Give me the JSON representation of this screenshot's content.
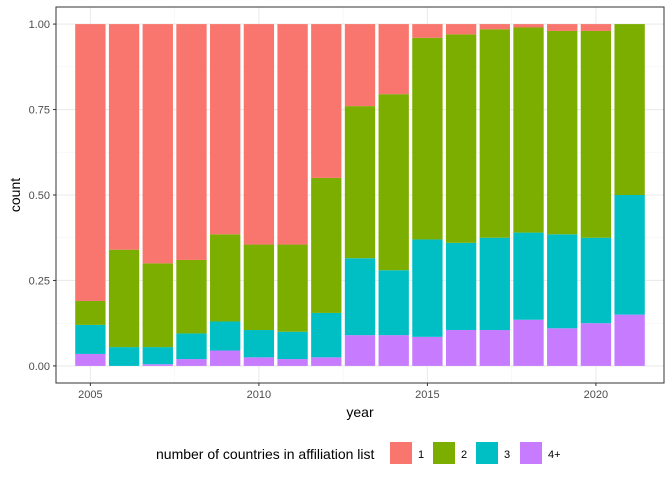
{
  "chart_data": {
    "type": "bar",
    "stacked": true,
    "xlabel": "year",
    "ylabel": "count",
    "x": [
      2005,
      2006,
      2007,
      2008,
      2009,
      2010,
      2011,
      2012,
      2013,
      2014,
      2015,
      2016,
      2017,
      2018,
      2019,
      2020,
      2021
    ],
    "xlim": [
      2003.98,
      2022.02
    ],
    "xticks": [
      2005,
      2010,
      2015,
      2020
    ],
    "ylim": [
      -0.05,
      1.05
    ],
    "yticks": [
      0,
      0.25,
      0.5,
      0.75,
      1
    ],
    "ytick_labels": [
      "0.00",
      "0.25",
      "0.50",
      "0.75",
      "1.00"
    ],
    "grid": true,
    "legend": {
      "title": "number of countries in affiliation list",
      "position": "bottom"
    },
    "series": [
      {
        "name": "1",
        "color": "#F8766D",
        "values": [
          0.81,
          0.66,
          0.7,
          0.69,
          0.615,
          0.645,
          0.645,
          0.45,
          0.24,
          0.205,
          0.04,
          0.03,
          0.015,
          0.01,
          0.02,
          0.02,
          0.0
        ]
      },
      {
        "name": "2",
        "color": "#7CAE00",
        "values": [
          0.07,
          0.285,
          0.245,
          0.215,
          0.255,
          0.25,
          0.255,
          0.395,
          0.445,
          0.515,
          0.59,
          0.61,
          0.61,
          0.6,
          0.595,
          0.605,
          0.5
        ]
      },
      {
        "name": "3",
        "color": "#00BFC4",
        "values": [
          0.085,
          0.055,
          0.05,
          0.075,
          0.085,
          0.08,
          0.08,
          0.13,
          0.225,
          0.19,
          0.285,
          0.255,
          0.27,
          0.255,
          0.275,
          0.25,
          0.35
        ]
      },
      {
        "name": "4+",
        "color": "#C77CFF",
        "values": [
          0.035,
          0.0,
          0.005,
          0.02,
          0.045,
          0.025,
          0.02,
          0.025,
          0.09,
          0.09,
          0.085,
          0.105,
          0.105,
          0.135,
          0.11,
          0.125,
          0.15
        ]
      }
    ]
  },
  "style": {
    "panel_border": "#333333",
    "grid_major": "#ebebeb",
    "grid_minor": "#f5f5f5",
    "tick_color": "#333333"
  }
}
